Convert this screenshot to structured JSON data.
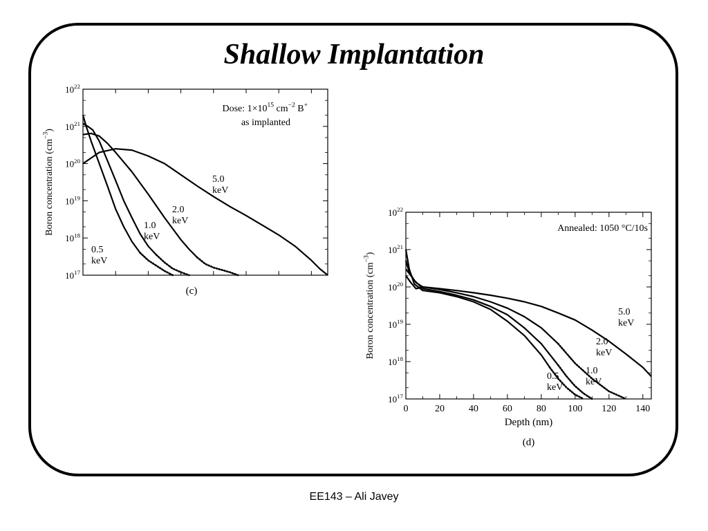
{
  "slide": {
    "title": "Shallow Implantation",
    "footer": "EE143 – Ali Javey"
  },
  "chart_data": [
    {
      "type": "line",
      "panel_label": "(c)",
      "annotation": [
        "Dose: 1×10",
        "15",
        " cm",
        "−2",
        " B",
        "+"
      ],
      "annotation_line2": "as implanted",
      "ylabel": "Boron concentration (cm",
      "ylabel_sup": "−3",
      "ylabel_close": ")",
      "y_scale": "log",
      "ylim": [
        1e+17,
        1e+22
      ],
      "y_ticks": [
        17,
        18,
        19,
        20,
        21,
        22
      ],
      "y_tick_base": "10",
      "xlim": [
        0,
        150
      ],
      "x_tick_labels_shown": false,
      "series": [
        {
          "label": [
            "0.5",
            "keV"
          ],
          "style": "dotted-tail",
          "x": [
            0,
            2,
            5,
            10,
            15,
            20,
            25,
            30,
            35,
            40,
            45,
            50,
            55
          ],
          "y": [
            2e+21,
            1e+21,
            4e+20,
            1e+20,
            2.5e+19,
            6e+18,
            2e+18,
            8e+17,
            4e+17,
            2.5e+17,
            1.8e+17,
            1.3e+17,
            1e+17
          ]
        },
        {
          "label": [
            "1.0",
            "keV"
          ],
          "style": "dotted-tail",
          "x": [
            0,
            3,
            6,
            10,
            15,
            20,
            25,
            30,
            35,
            40,
            45,
            50,
            55,
            60,
            65
          ],
          "y": [
            1.2e+21,
            1e+21,
            8e+20,
            4e+20,
            1.2e+20,
            3.5e+19,
            1e+19,
            3.5e+18,
            1.3e+18,
            6e+17,
            3.5e+17,
            2.2e+17,
            1.5e+17,
            1.2e+17,
            1e+17
          ]
        },
        {
          "label": [
            "2.0",
            "keV"
          ],
          "style": "dotted-tail",
          "x": [
            0,
            5,
            10,
            15,
            20,
            30,
            40,
            50,
            60,
            65,
            70,
            75,
            80,
            90,
            95
          ],
          "y": [
            6e+20,
            6.5e+20,
            5.5e+20,
            3.5e+20,
            2e+20,
            6e+19,
            1.5e+19,
            3.5e+18,
            9e+17,
            5e+17,
            3e+17,
            2e+17,
            1.6e+17,
            1.2e+17,
            1e+17
          ]
        },
        {
          "label": [
            "5.0",
            "keV"
          ],
          "style": "solid",
          "x": [
            0,
            10,
            20,
            30,
            40,
            50,
            60,
            70,
            80,
            90,
            100,
            110,
            120,
            130,
            140,
            145,
            150
          ],
          "y": [
            1e+20,
            2e+20,
            2.5e+20,
            2.3e+20,
            1.6e+20,
            1e+20,
            5e+19,
            2.5e+19,
            1.3e+19,
            7e+18,
            4e+18,
            2.2e+18,
            1.2e+18,
            6e+17,
            2.5e+17,
            1.5e+17,
            1e+17
          ]
        }
      ]
    },
    {
      "type": "line",
      "panel_label": "(d)",
      "annotation": [
        "Annealed: 1050 °C/10s"
      ],
      "ylabel": "Boron concentration (cm",
      "ylabel_sup": "−3",
      "ylabel_close": ")",
      "xlabel": "Depth (nm)",
      "y_scale": "log",
      "ylim": [
        1e+17,
        1e+22
      ],
      "y_ticks": [
        17,
        18,
        19,
        20,
        21,
        22
      ],
      "y_tick_base": "10",
      "xlim": [
        0,
        145
      ],
      "x_ticks": [
        0,
        20,
        40,
        60,
        80,
        100,
        120,
        140
      ],
      "series": [
        {
          "label": [
            "0.5",
            "keV"
          ],
          "style": "dotted-tail",
          "x": [
            0,
            2,
            5,
            10,
            20,
            30,
            40,
            50,
            60,
            70,
            80,
            85,
            90,
            95,
            100,
            105
          ],
          "y": [
            1e+21,
            3e+20,
            1.2e+20,
            8e+19,
            7e+19,
            5.5e+19,
            4e+19,
            2.5e+19,
            1.2e+19,
            5e+18,
            1.5e+18,
            7e+17,
            3.5e+17,
            2e+17,
            1.3e+17,
            1e+17
          ]
        },
        {
          "label": [
            "1.0",
            "keV"
          ],
          "style": "dotted-tail",
          "x": [
            0,
            2,
            5,
            10,
            20,
            30,
            40,
            50,
            60,
            70,
            80,
            90,
            95,
            100,
            105,
            110
          ],
          "y": [
            5e+20,
            2.5e+20,
            1.5e+20,
            9e+19,
            7.5e+19,
            6e+19,
            4.5e+19,
            3e+19,
            1.8e+19,
            8e+18,
            3e+18,
            8e+17,
            4e+17,
            2.2e+17,
            1.4e+17,
            1e+17
          ]
        },
        {
          "label": [
            "2.0",
            "keV"
          ],
          "style": "dotted-tail",
          "x": [
            0,
            3,
            6,
            10,
            20,
            30,
            40,
            50,
            60,
            70,
            80,
            90,
            100,
            110,
            120,
            130
          ],
          "y": [
            3e+20,
            2e+20,
            1.3e+20,
            1e+20,
            8.5e+19,
            7e+19,
            5.5e+19,
            4e+19,
            2.7e+19,
            1.6e+19,
            8e+18,
            3e+18,
            9e+17,
            3.5e+17,
            1.6e+17,
            1e+17
          ]
        },
        {
          "label": [
            "5.0",
            "keV"
          ],
          "style": "solid",
          "x": [
            0,
            3,
            6,
            10,
            20,
            30,
            40,
            50,
            60,
            70,
            80,
            90,
            100,
            110,
            120,
            130,
            140,
            145
          ],
          "y": [
            2e+20,
            1.3e+20,
            9e+19,
            1e+20,
            9e+19,
            8e+19,
            7e+19,
            6e+19,
            5e+19,
            4e+19,
            3e+19,
            2e+19,
            1.3e+19,
            7e+18,
            3.5e+18,
            1.6e+18,
            7e+17,
            4e+17
          ]
        }
      ]
    }
  ]
}
